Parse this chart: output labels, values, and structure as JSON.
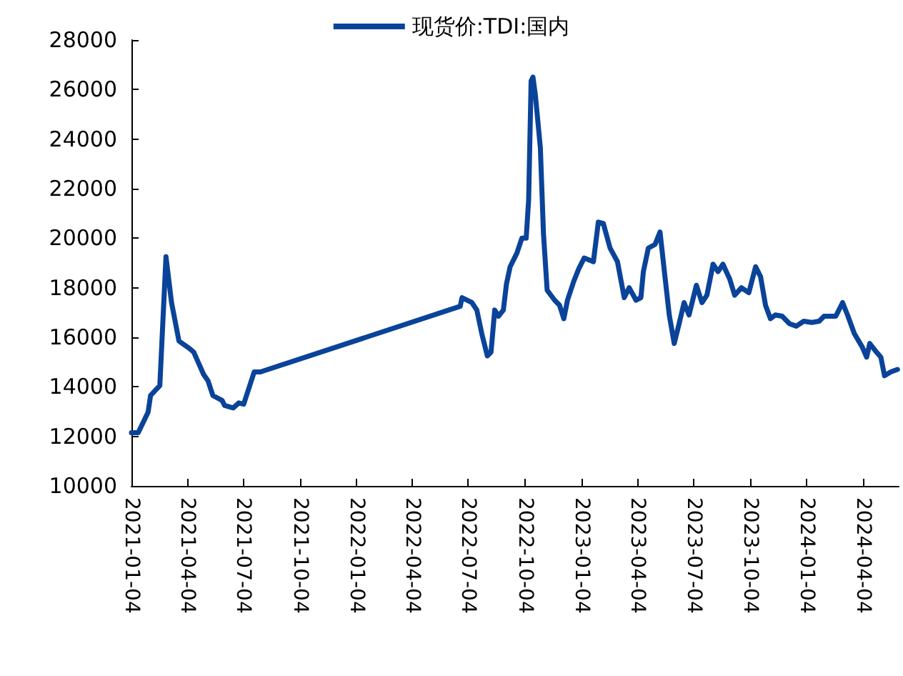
{
  "chart_data": {
    "type": "line",
    "legend": "top",
    "grid": false,
    "marker": "none",
    "line_style": "solid",
    "ylim": [
      10000,
      28000
    ],
    "yticks": [
      10000,
      12000,
      14000,
      16000,
      18000,
      20000,
      22000,
      24000,
      26000,
      28000
    ],
    "xlim": [
      "2021-01-04",
      "2024-06-01"
    ],
    "xticks": [
      "2021-01-04",
      "2021-04-04",
      "2021-07-04",
      "2021-10-04",
      "2022-01-04",
      "2022-04-04",
      "2022-07-04",
      "2022-10-04",
      "2023-01-04",
      "2023-04-04",
      "2023-07-04",
      "2023-10-04",
      "2024-01-04",
      "2024-04-04"
    ],
    "x": [
      "2021-01-04",
      "2021-01-15",
      "2021-01-31",
      "2021-02-04",
      "2021-02-19",
      "2021-03-01",
      "2021-03-10",
      "2021-03-22",
      "2021-04-08",
      "2021-04-15",
      "2021-05-01",
      "2021-05-08",
      "2021-05-16",
      "2021-05-31",
      "2021-06-04",
      "2021-06-18",
      "2021-06-27",
      "2021-07-05",
      "2021-07-22",
      "2021-08-01",
      "2022-06-21",
      "2022-06-24",
      "2022-07-10",
      "2022-07-18",
      "2022-07-26",
      "2022-08-04",
      "2022-08-10",
      "2022-08-16",
      "2022-08-22",
      "2022-08-30",
      "2022-09-04",
      "2022-09-10",
      "2022-09-21",
      "2022-09-29",
      "2022-10-06",
      "2022-10-10",
      "2022-10-14",
      "2022-10-17",
      "2022-10-21",
      "2022-10-29",
      "2022-11-03",
      "2022-11-09",
      "2022-11-21",
      "2022-11-29",
      "2022-12-06",
      "2022-12-12",
      "2022-12-22",
      "2022-12-30",
      "2023-01-08",
      "2023-01-23",
      "2023-01-31",
      "2023-02-08",
      "2023-02-19",
      "2023-03-03",
      "2023-03-14",
      "2023-03-22",
      "2023-04-02",
      "2023-04-10",
      "2023-04-14",
      "2023-04-22",
      "2023-05-03",
      "2023-05-11",
      "2023-05-19",
      "2023-05-26",
      "2023-06-03",
      "2023-06-11",
      "2023-06-19",
      "2023-06-27",
      "2023-07-09",
      "2023-07-18",
      "2023-07-26",
      "2023-08-05",
      "2023-08-13",
      "2023-08-21",
      "2023-09-01",
      "2023-09-09",
      "2023-09-20",
      "2023-10-02",
      "2023-10-13",
      "2023-10-21",
      "2023-10-29",
      "2023-11-06",
      "2023-11-14",
      "2023-11-25",
      "2023-12-07",
      "2023-12-18",
      "2023-12-30",
      "2024-01-12",
      "2024-01-24",
      "2024-02-01",
      "2024-02-20",
      "2024-03-02",
      "2024-03-10",
      "2024-03-21",
      "2024-04-03",
      "2024-04-10",
      "2024-04-15",
      "2024-04-26",
      "2024-05-03",
      "2024-05-09",
      "2024-05-19",
      "2024-05-30"
    ],
    "series": [
      {
        "name": "现货价:TDI:国内",
        "color": "#0a4399",
        "values": [
          12150,
          12150,
          12980,
          13650,
          14050,
          19250,
          17400,
          15850,
          15550,
          15400,
          14500,
          14250,
          13650,
          13450,
          13250,
          13150,
          13350,
          13300,
          14600,
          14600,
          17250,
          17600,
          17400,
          17100,
          16150,
          15250,
          15400,
          17100,
          16850,
          17100,
          18150,
          18850,
          19400,
          20000,
          20000,
          21550,
          26350,
          26500,
          25750,
          23650,
          20200,
          17900,
          17500,
          17300,
          16750,
          17500,
          18250,
          18750,
          19200,
          19050,
          20650,
          20600,
          19600,
          19050,
          17600,
          18000,
          17500,
          17600,
          18650,
          19600,
          19750,
          20250,
          18450,
          16900,
          15750,
          16550,
          17400,
          16900,
          18100,
          17400,
          17700,
          18950,
          18650,
          18950,
          18350,
          17700,
          18000,
          17800,
          18850,
          18450,
          17300,
          16750,
          16900,
          16850,
          16550,
          16450,
          16650,
          16600,
          16650,
          16850,
          16850,
          17400,
          16900,
          16150,
          15600,
          15200,
          15750,
          15400,
          15200,
          14450,
          14600,
          14700
        ]
      }
    ]
  }
}
